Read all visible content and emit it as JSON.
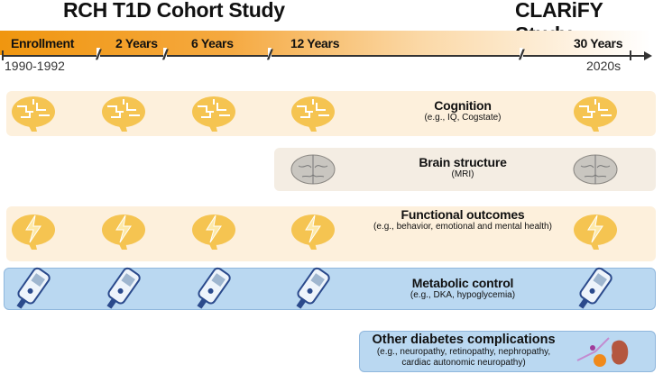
{
  "titles": {
    "left": "RCH T1D Cohort Study",
    "right": "CLARiFY Study"
  },
  "timeline": {
    "labels": [
      "Enrollment",
      "2 Years",
      "6 Years",
      "12 Years",
      "30 Years"
    ],
    "start_year": "1990-1992",
    "end_year": "2020s",
    "break_symbol": "//"
  },
  "rows": {
    "cognition": {
      "title": "Cognition",
      "subtitle": "(e.g., IQ, Cogstate)"
    },
    "brain": {
      "title": "Brain structure",
      "subtitle": "(MRI)"
    },
    "functional": {
      "title": "Functional outcomes",
      "subtitle": "(e.g., behavior, emotional and mental health)"
    },
    "metabolic": {
      "title": "Metabolic control",
      "subtitle": "(e.g., DKA, hypoglycemia)"
    },
    "other": {
      "title": "Other diabetes complications",
      "subtitle": "(e.g., neuropathy, retinopathy, nephropathy, cardiac autonomic neuropathy)"
    }
  },
  "colors": {
    "orange": "#f0960f",
    "brain_icon": "#f5c451",
    "blue_box": "#bad8f1"
  }
}
